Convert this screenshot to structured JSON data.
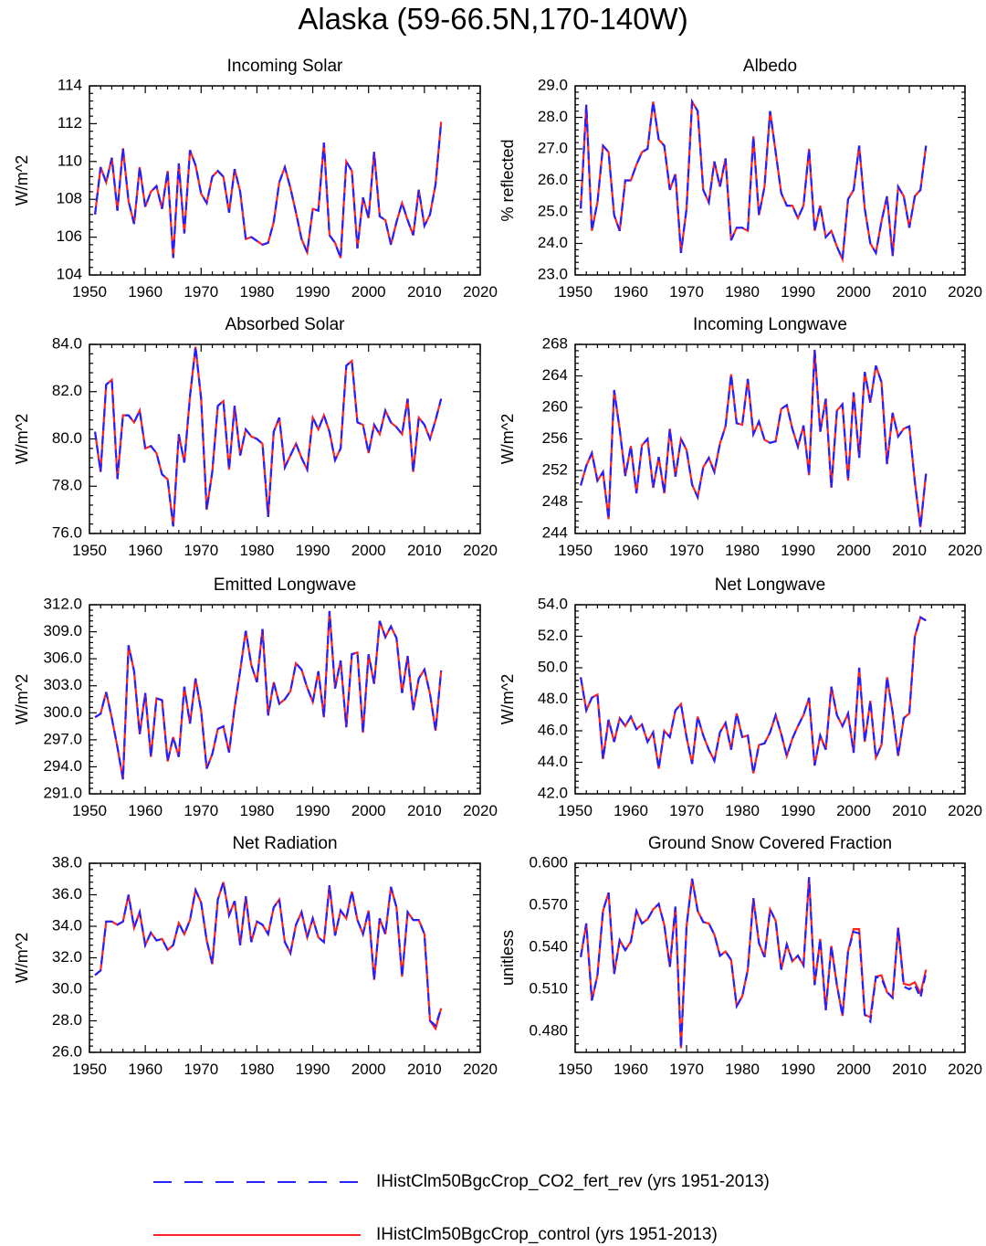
{
  "title": "Alaska (59-66.5N,170-140W)",
  "colors": {
    "control": "#ff2222",
    "co2_fert_rev": "#2222ff"
  },
  "legend": {
    "position": "bottom",
    "entries": [
      {
        "label": "IHistClm50BgcCrop_CO2_fert_rev (yrs 1951-2013)",
        "color": "#2222ff",
        "style": "dashed"
      },
      {
        "label": "IHistClm50BgcCrop_control (yrs 1951-2013)",
        "color": "#ff2222",
        "style": "solid"
      }
    ]
  },
  "chart_data": [
    {
      "type": "line",
      "title": "Incoming Solar",
      "ylabel": "W/m^2",
      "xlim": [
        1950,
        2020
      ],
      "ylim": [
        104,
        114
      ],
      "xticks": [
        1950,
        1960,
        1970,
        1980,
        1990,
        2000,
        2010,
        2020
      ],
      "yticks": [
        "104",
        "106",
        "108",
        "110",
        "112",
        "114"
      ],
      "x_start": 1951,
      "values": [
        107.2,
        109.7,
        108.9,
        110.2,
        107.4,
        110.7,
        107.9,
        106.7,
        109.7,
        107.6,
        108.4,
        108.7,
        107.5,
        109.5,
        104.9,
        109.9,
        106.2,
        110.6,
        109.8,
        108.3,
        107.8,
        109.2,
        109.5,
        109.2,
        107.3,
        109.6,
        108.4,
        105.9,
        106.0,
        105.8,
        105.6,
        105.7,
        106.8,
        108.9,
        109.7,
        108.6,
        107.3,
        105.9,
        105.2,
        107.5,
        107.4,
        111.0,
        106.1,
        105.7,
        104.9,
        110.0,
        109.5,
        105.4,
        108.1,
        107.0,
        110.5,
        107.1,
        106.9,
        105.6,
        106.8,
        107.8,
        106.9,
        106.1,
        108.5,
        106.6,
        107.2,
        108.8,
        112.1
      ],
      "series": [
        {
          "name": "IHistClm50BgcCrop_CO2_fert_rev",
          "offsets": [
            0
          ]
        },
        {
          "name": "IHistClm50BgcCrop_control",
          "offsets": [
            0
          ]
        }
      ]
    },
    {
      "type": "line",
      "title": "Albedo",
      "ylabel": "% reflected",
      "xlim": [
        1950,
        2020
      ],
      "ylim": [
        23,
        29
      ],
      "xticks": [
        1950,
        1960,
        1970,
        1980,
        1990,
        2000,
        2010,
        2020
      ],
      "yticks": [
        "23.0",
        "24.0",
        "25.0",
        "26.0",
        "27.0",
        "28.0",
        "29.0"
      ],
      "x_start": 1951,
      "values": [
        25.1,
        28.4,
        24.4,
        25.3,
        27.1,
        26.9,
        24.9,
        24.4,
        26.0,
        26.0,
        26.5,
        26.9,
        27.0,
        28.5,
        27.3,
        27.1,
        25.7,
        26.2,
        23.7,
        25.1,
        28.5,
        28.2,
        25.7,
        25.3,
        26.6,
        25.8,
        26.7,
        24.1,
        24.5,
        24.5,
        24.4,
        27.4,
        24.9,
        25.8,
        28.2,
        26.9,
        25.6,
        25.2,
        25.2,
        24.8,
        25.2,
        27.0,
        24.4,
        25.2,
        24.2,
        24.4,
        23.9,
        23.5,
        25.4,
        25.7,
        27.1,
        25.1,
        24.0,
        23.7,
        24.7,
        25.5,
        23.6,
        25.8,
        25.5,
        24.5,
        25.5,
        25.7,
        27.1
      ],
      "series": [
        {
          "name": "IHistClm50BgcCrop_CO2_fert_rev",
          "offsets": [
            0
          ]
        },
        {
          "name": "IHistClm50BgcCrop_control",
          "offsets": [
            0
          ]
        }
      ]
    },
    {
      "type": "line",
      "title": "Absorbed Solar",
      "ylabel": "W/m^2",
      "xlim": [
        1950,
        2020
      ],
      "ylim": [
        76,
        84
      ],
      "xticks": [
        1950,
        1960,
        1970,
        1980,
        1990,
        2000,
        2010,
        2020
      ],
      "yticks": [
        "76.0",
        "78.0",
        "80.0",
        "82.0",
        "84.0"
      ],
      "x_start": 1951,
      "values": [
        80.3,
        78.6,
        82.3,
        82.5,
        78.3,
        81.0,
        81.0,
        80.7,
        81.2,
        79.6,
        79.7,
        79.4,
        78.5,
        78.3,
        76.3,
        80.2,
        79.0,
        81.8,
        83.9,
        81.7,
        77.0,
        78.6,
        81.4,
        81.6,
        78.7,
        81.4,
        79.3,
        80.4,
        80.1,
        80.0,
        79.8,
        76.7,
        80.3,
        80.9,
        78.8,
        79.3,
        79.8,
        79.2,
        78.7,
        80.9,
        80.4,
        81.0,
        80.3,
        79.1,
        79.6,
        83.1,
        83.3,
        80.7,
        80.6,
        79.4,
        80.6,
        80.2,
        81.2,
        80.7,
        80.5,
        80.2,
        81.7,
        78.6,
        80.9,
        80.6,
        80.0,
        80.8,
        81.7
      ],
      "series": [
        {
          "name": "IHistClm50BgcCrop_CO2_fert_rev",
          "offsets": [
            0
          ]
        },
        {
          "name": "IHistClm50BgcCrop_control",
          "offsets": [
            0
          ]
        }
      ]
    },
    {
      "type": "line",
      "title": "Incoming Longwave",
      "ylabel": "W/m^2",
      "xlim": [
        1950,
        2020
      ],
      "ylim": [
        244,
        268
      ],
      "xticks": [
        1950,
        1960,
        1970,
        1980,
        1990,
        2000,
        2010,
        2020
      ],
      "yticks": [
        "244",
        "248",
        "252",
        "256",
        "260",
        "264",
        "268"
      ],
      "x_start": 1951,
      "values": [
        250.1,
        252.6,
        254.2,
        250.7,
        251.8,
        245.8,
        262.2,
        257.2,
        251.3,
        255.1,
        249.1,
        255.2,
        256.0,
        249.8,
        253.7,
        249.1,
        257.3,
        251.2,
        256.0,
        254.6,
        250.2,
        248.6,
        252.4,
        253.6,
        251.8,
        255.4,
        257.6,
        264.2,
        258.0,
        257.8,
        263.6,
        256.6,
        258.2,
        255.9,
        255.5,
        255.7,
        259.8,
        260.3,
        257.3,
        255.0,
        257.7,
        251.4,
        267.3,
        256.9,
        261.1,
        249.8,
        259.6,
        260.4,
        250.7,
        261.9,
        253.6,
        264.5,
        260.6,
        265.3,
        263.2,
        252.8,
        259.3,
        256.3,
        257.3,
        257.6,
        250.5,
        244.8,
        251.6
      ],
      "series": [
        {
          "name": "IHistClm50BgcCrop_CO2_fert_rev",
          "offsets": [
            0
          ]
        },
        {
          "name": "IHistClm50BgcCrop_control",
          "offsets": [
            0
          ]
        }
      ]
    },
    {
      "type": "line",
      "title": "Emitted Longwave",
      "ylabel": "W/m^2",
      "xlim": [
        1950,
        2020
      ],
      "ylim": [
        291,
        312
      ],
      "xticks": [
        1950,
        1960,
        1970,
        1980,
        1990,
        2000,
        2010,
        2020
      ],
      "yticks": [
        "291.0",
        "294.0",
        "297.0",
        "300.0",
        "303.0",
        "306.0",
        "309.0",
        "312.0"
      ],
      "x_start": 1951,
      "values": [
        299.5,
        299.9,
        302.3,
        299.4,
        296.2,
        292.6,
        307.5,
        304.6,
        297.6,
        302.2,
        295.1,
        301.6,
        301.4,
        294.6,
        297.3,
        295.1,
        302.9,
        298.8,
        303.8,
        300.2,
        293.8,
        295.4,
        298.2,
        298.5,
        295.6,
        300.6,
        304.7,
        309.1,
        305.3,
        303.4,
        309.3,
        299.7,
        303.4,
        301.0,
        301.5,
        302.4,
        305.5,
        304.8,
        302.8,
        301.2,
        304.6,
        299.5,
        311.3,
        302.7,
        305.8,
        298.4,
        306.5,
        306.7,
        297.8,
        306.5,
        303.2,
        310.2,
        308.4,
        309.6,
        308.3,
        302.2,
        306.3,
        300.3,
        303.8,
        304.8,
        302.1,
        298.0,
        304.7
      ],
      "series": [
        {
          "name": "IHistClm50BgcCrop_CO2_fert_rev",
          "offsets": [
            0
          ]
        },
        {
          "name": "IHistClm50BgcCrop_control",
          "offsets": [
            0
          ]
        }
      ]
    },
    {
      "type": "line",
      "title": "Net Longwave",
      "ylabel": "W/m^2",
      "xlim": [
        1950,
        2020
      ],
      "ylim": [
        42,
        54
      ],
      "xticks": [
        1950,
        1960,
        1970,
        1980,
        1990,
        2000,
        2010,
        2020
      ],
      "yticks": [
        "42.0",
        "44.0",
        "46.0",
        "48.0",
        "50.0",
        "52.0",
        "54.0"
      ],
      "x_start": 1951,
      "values": [
        49.4,
        47.3,
        48.1,
        48.3,
        44.2,
        46.7,
        45.3,
        46.8,
        46.3,
        46.9,
        46.1,
        46.4,
        45.3,
        45.9,
        43.6,
        46.0,
        45.6,
        47.3,
        47.7,
        45.6,
        43.9,
        46.9,
        45.7,
        44.8,
        44.1,
        45.9,
        46.5,
        44.8,
        47.1,
        45.6,
        45.7,
        43.3,
        45.1,
        45.2,
        45.9,
        47.0,
        45.8,
        44.4,
        45.5,
        46.3,
        47.0,
        48.1,
        43.8,
        45.7,
        44.8,
        48.8,
        47.0,
        46.3,
        47.1,
        44.6,
        50.0,
        45.3,
        47.9,
        44.3,
        45.1,
        49.4,
        47.2,
        44.4,
        46.8,
        47.1,
        52.0,
        53.2,
        53.0
      ],
      "series": [
        {
          "name": "IHistClm50BgcCrop_CO2_fert_rev",
          "offsets": [
            0
          ]
        },
        {
          "name": "IHistClm50BgcCrop_control",
          "offsets": [
            0
          ]
        }
      ]
    },
    {
      "type": "line",
      "title": "Net Radiation",
      "ylabel": "W/m^2",
      "xlim": [
        1950,
        2020
      ],
      "ylim": [
        26,
        38
      ],
      "xticks": [
        1950,
        1960,
        1970,
        1980,
        1990,
        2000,
        2010,
        2020
      ],
      "yticks": [
        "26.0",
        "28.0",
        "30.0",
        "32.0",
        "34.0",
        "36.0",
        "38.0"
      ],
      "x_start": 1951,
      "values": [
        30.9,
        31.2,
        34.3,
        34.3,
        34.1,
        34.3,
        36.0,
        33.9,
        34.9,
        32.8,
        33.6,
        33.1,
        33.2,
        32.5,
        32.8,
        34.2,
        33.5,
        34.4,
        36.3,
        35.5,
        33.1,
        31.6,
        35.7,
        36.8,
        34.7,
        35.6,
        32.8,
        35.9,
        33.0,
        34.3,
        34.1,
        33.5,
        35.2,
        35.7,
        33.0,
        32.3,
        34.1,
        34.9,
        33.3,
        34.5,
        33.3,
        33.0,
        36.6,
        33.4,
        35.0,
        34.5,
        36.2,
        34.4,
        33.5,
        35.0,
        30.6,
        34.5,
        33.5,
        36.5,
        35.2,
        30.8,
        34.9,
        34.4,
        34.4,
        33.5,
        28.0,
        27.7,
        28.8
      ],
      "series": [
        {
          "name": "IHistClm50BgcCrop_CO2_fert_rev",
          "offsets": [
            0
          ]
        },
        {
          "name": "IHistClm50BgcCrop_control",
          "offsets": [
            0,
            0,
            0,
            0,
            0,
            0,
            0,
            0,
            0,
            0,
            0,
            0,
            0,
            0,
            0,
            0,
            0,
            0,
            0,
            0,
            0,
            0,
            0,
            0,
            0,
            0,
            0,
            0,
            0,
            0,
            0,
            0,
            0,
            0,
            0,
            0,
            0,
            0,
            0,
            0,
            0,
            0,
            0,
            0,
            0,
            0,
            0,
            0,
            0,
            0,
            0,
            0,
            0,
            0,
            0,
            0,
            0,
            0,
            0,
            0,
            0,
            -0.2,
            0
          ]
        }
      ]
    },
    {
      "type": "line",
      "title": "Ground Snow Covered Fraction",
      "ylabel": "unitless",
      "xlim": [
        1950,
        2020
      ],
      "ylim": [
        0.465,
        0.6
      ],
      "xticks": [
        1950,
        1960,
        1970,
        1980,
        1990,
        2000,
        2010,
        2020
      ],
      "yticks": [
        "0.480",
        "0.510",
        "0.540",
        "0.570",
        "0.600"
      ],
      "x_start": 1951,
      "values": [
        0.533,
        0.557,
        0.502,
        0.52,
        0.566,
        0.579,
        0.521,
        0.545,
        0.538,
        0.544,
        0.566,
        0.557,
        0.56,
        0.567,
        0.571,
        0.556,
        0.526,
        0.569,
        0.468,
        0.555,
        0.589,
        0.566,
        0.558,
        0.557,
        0.549,
        0.534,
        0.537,
        0.531,
        0.498,
        0.505,
        0.524,
        0.575,
        0.543,
        0.533,
        0.567,
        0.559,
        0.524,
        0.542,
        0.53,
        0.534,
        0.527,
        0.59,
        0.513,
        0.546,
        0.495,
        0.541,
        0.513,
        0.491,
        0.537,
        0.551,
        0.55,
        0.492,
        0.487,
        0.519,
        0.518,
        0.508,
        0.504,
        0.554,
        0.512,
        0.51,
        0.513,
        0.504,
        0.522
      ],
      "series": [
        {
          "name": "IHistClm50BgcCrop_CO2_fert_rev",
          "offsets": [
            0
          ]
        },
        {
          "name": "IHistClm50BgcCrop_control",
          "offsets": [
            0,
            0,
            0,
            0,
            0,
            0,
            0,
            0,
            0,
            0,
            0,
            0,
            0,
            0,
            0,
            0,
            0,
            0,
            0,
            0,
            0,
            0,
            0,
            0,
            0,
            0,
            0,
            0,
            0,
            0,
            0,
            0,
            0,
            0,
            0,
            0,
            0,
            0,
            0,
            0,
            0,
            0,
            0,
            0,
            0,
            0,
            0,
            0,
            0,
            0.002,
            0.003,
            0,
            0.003,
            0,
            0.002,
            0,
            0,
            0,
            0.002,
            0.003,
            0.002,
            0.003,
            0.002
          ]
        }
      ]
    }
  ]
}
